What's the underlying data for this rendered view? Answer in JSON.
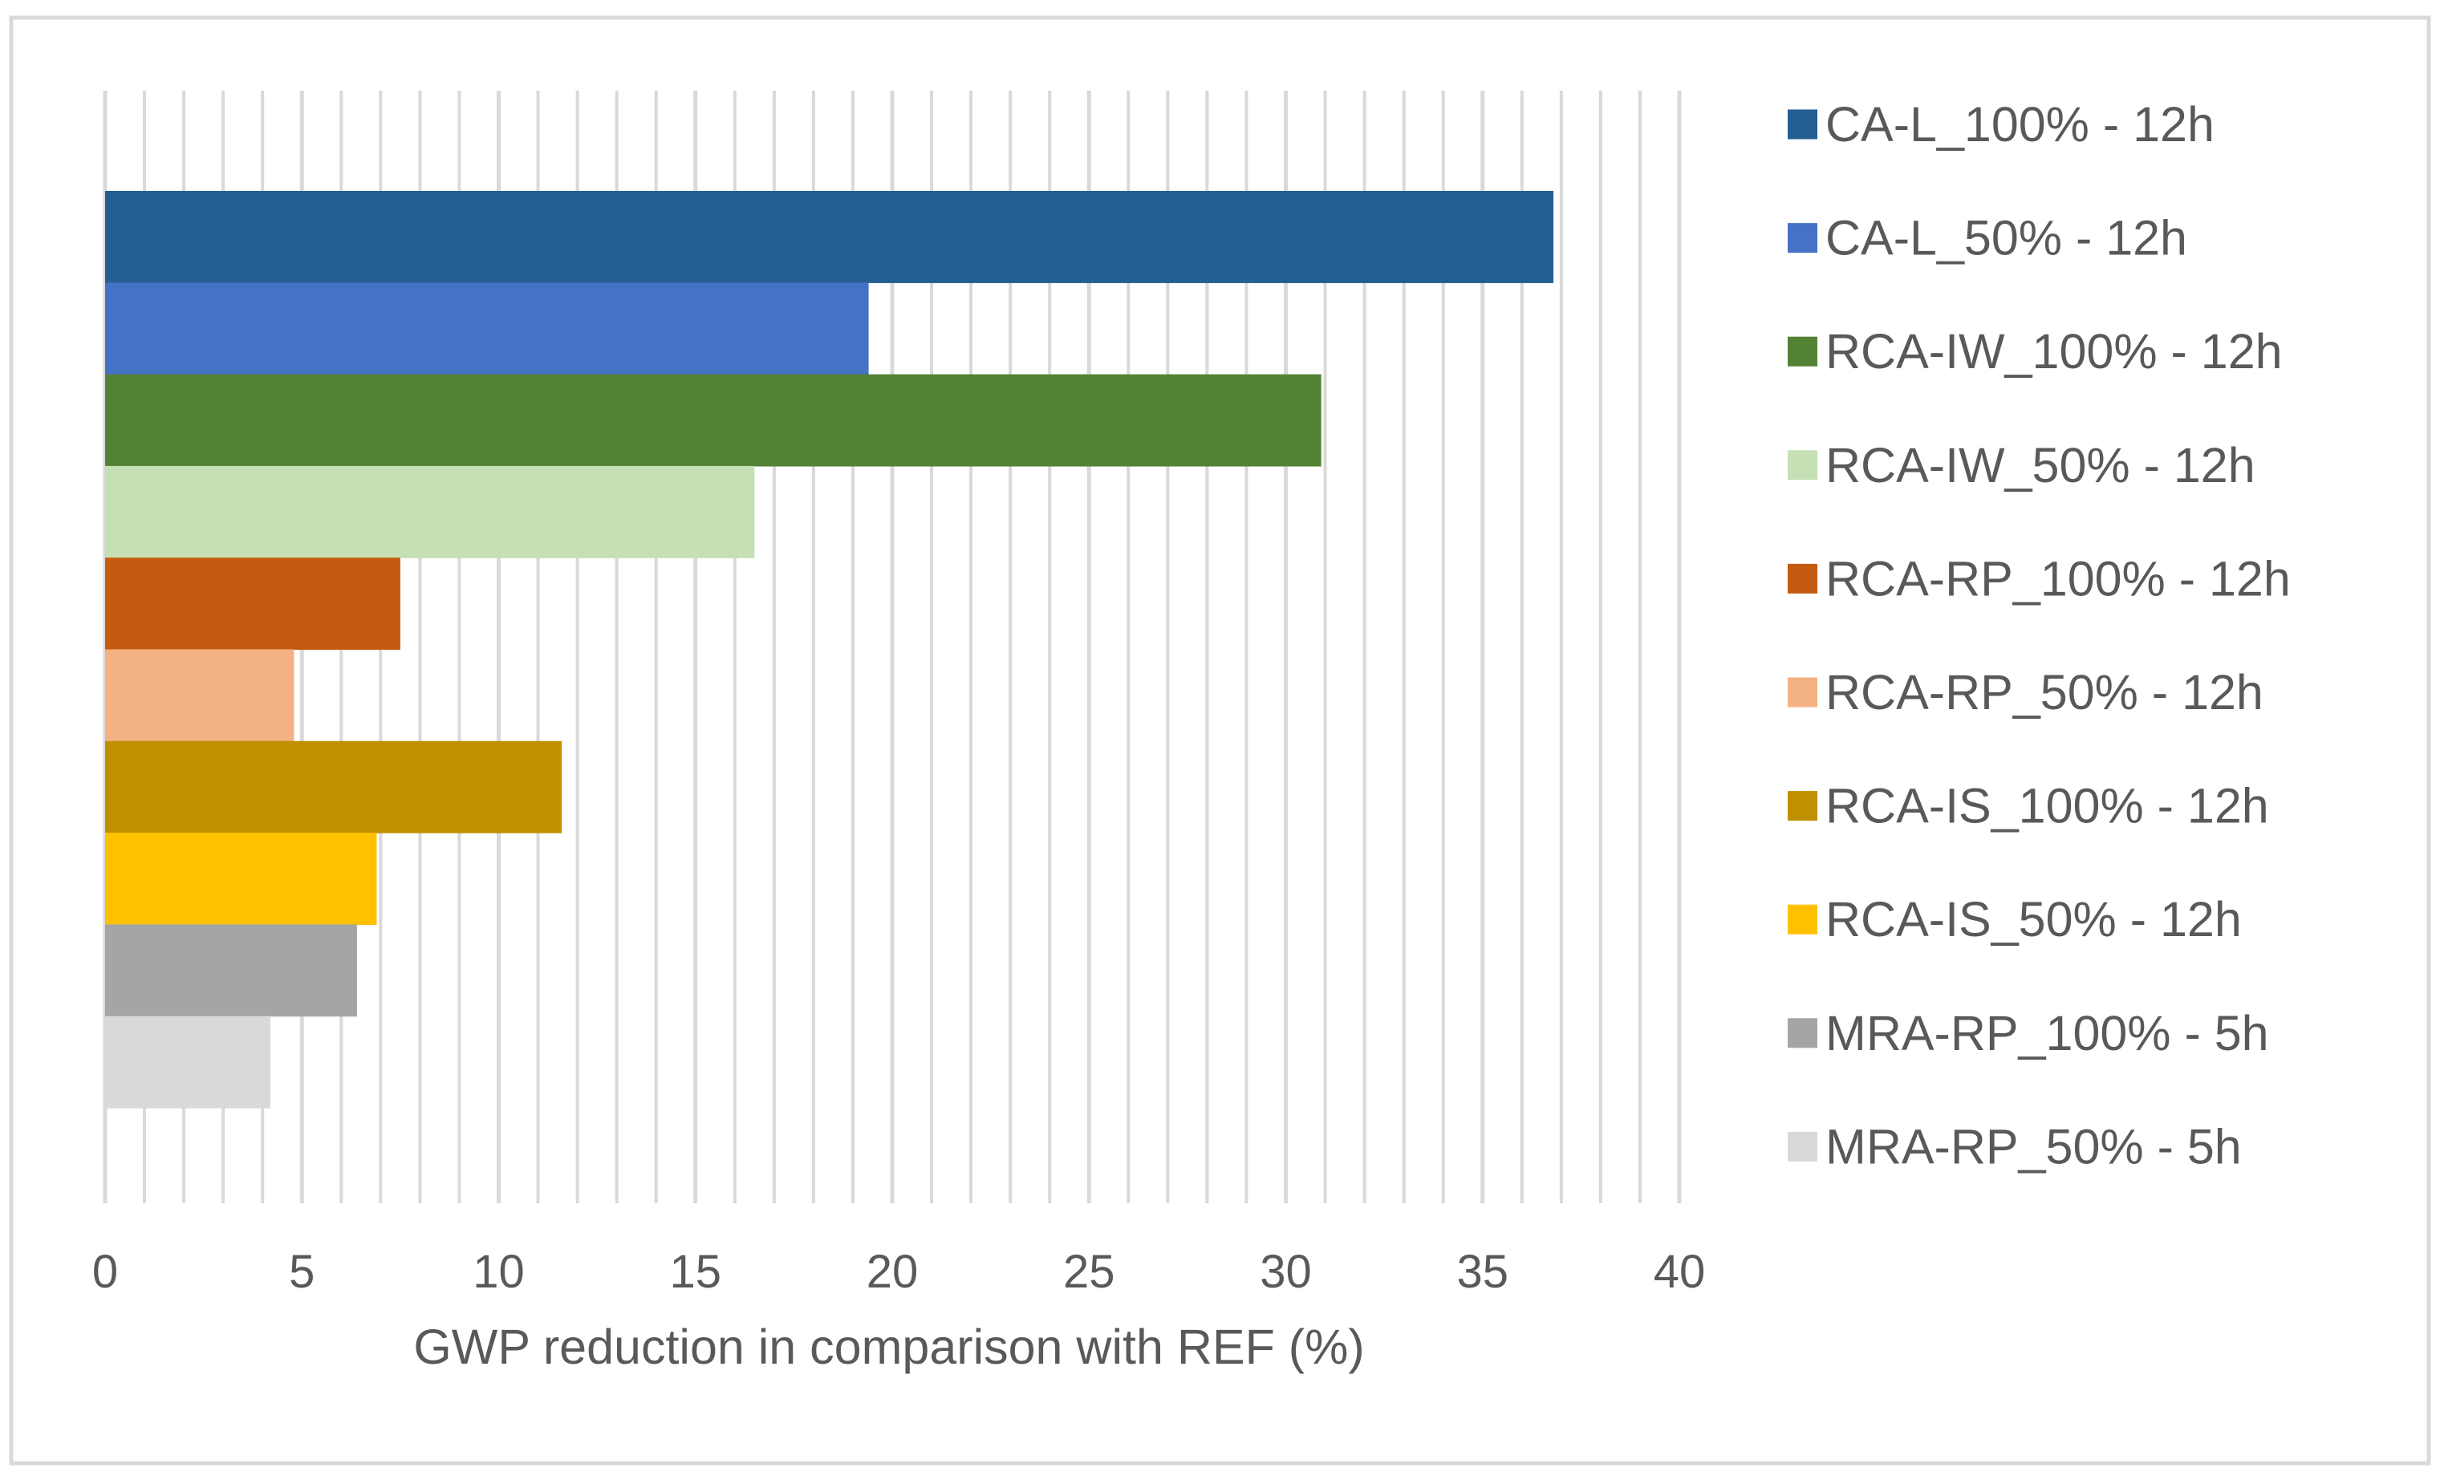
{
  "chart_data": {
    "type": "bar",
    "orientation": "horizontal",
    "title": "",
    "xlabel": "GWP reduction in comparison with REF (%)",
    "ylabel": "",
    "xlim": [
      0,
      40
    ],
    "major_ticks": [
      0,
      5,
      10,
      15,
      20,
      25,
      30,
      35,
      40
    ],
    "minor_tick_step": 1,
    "grid": true,
    "legend_position": "right",
    "series": [
      {
        "name": "CA-L_100% - 12h",
        "value": 36.8,
        "color": "#255e91"
      },
      {
        "name": "CA-L_50% - 12h",
        "value": 19.4,
        "color": "#4472c4"
      },
      {
        "name": "RCA-IW_100% - 12h",
        "value": 30.9,
        "color": "#548235"
      },
      {
        "name": "RCA-IW_50% - 12h",
        "value": 16.5,
        "color": "#c5e0b4"
      },
      {
        "name": "RCA-RP_100% - 12h",
        "value": 7.5,
        "color": "#c55a11"
      },
      {
        "name": "RCA-RP_50% - 12h",
        "value": 4.8,
        "color": "#f4b183"
      },
      {
        "name": "RCA-IS_100% - 12h",
        "value": 11.6,
        "color": "#bf9000"
      },
      {
        "name": "RCA-IS_50% - 12h",
        "value": 6.9,
        "color": "#ffc000"
      },
      {
        "name": "MRA-RP_100% - 5h",
        "value": 6.4,
        "color": "#a5a5a5"
      },
      {
        "name": "MRA-RP_50% - 5h",
        "value": 4.2,
        "color": "#d9d9d9"
      }
    ]
  }
}
